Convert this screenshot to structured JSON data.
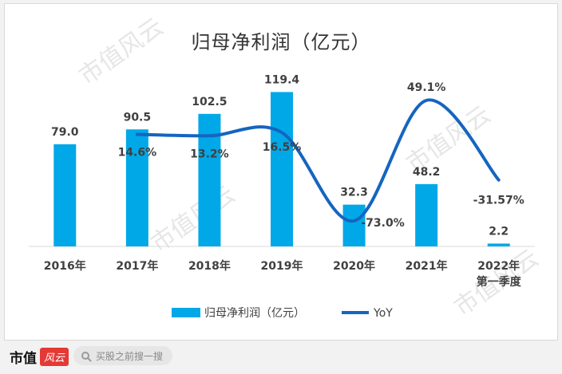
{
  "chart_data": {
    "type": "bar",
    "title": "归母净利润（亿元）",
    "categories": [
      [
        "2016年"
      ],
      [
        "2017年"
      ],
      [
        "2018年"
      ],
      [
        "2019年"
      ],
      [
        "2020年"
      ],
      [
        "2021年"
      ],
      [
        "2022年",
        "第一季度"
      ]
    ],
    "series": [
      {
        "name": "归母净利润（亿元）",
        "type": "bar",
        "values": [
          79.0,
          90.5,
          102.5,
          119.4,
          32.3,
          48.2,
          2.2
        ],
        "labels": [
          "79.0",
          "90.5",
          "102.5",
          "119.4",
          "32.3",
          "48.2",
          "2.2"
        ],
        "color": "#00a8e8"
      },
      {
        "name": "YoY",
        "type": "line",
        "values": [
          null,
          14.6,
          13.2,
          16.5,
          -73.0,
          49.1,
          -31.57
        ],
        "labels": [
          "",
          "14.6%",
          "13.2%",
          "16.5%",
          "-73.0%",
          "49.1%",
          "-31.57%"
        ],
        "color": "#1565c0"
      }
    ],
    "ylim": [
      0,
      140
    ],
    "y2lim": [
      -90,
      70
    ],
    "grid": false,
    "legend": "bottom"
  },
  "watermark": "市值风云",
  "footer": {
    "brand": "市值",
    "seal": "风云",
    "search_placeholder": "买股之前搜一搜"
  },
  "colors": {
    "bar": "#00a8e8",
    "line": "#1565c0"
  }
}
